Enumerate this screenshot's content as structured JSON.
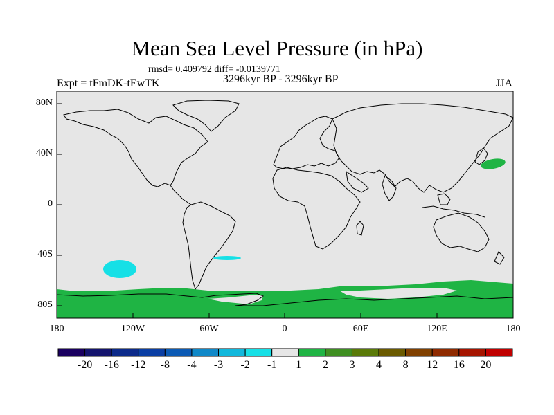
{
  "title": "Mean Sea Level Pressure (in hPa)",
  "stats": "rmsd= 0.409792  diff= -0.0139771",
  "experiment": "Expt = tFmDK-tEwTK",
  "period": "3296kyr BP - 3296kyr BP",
  "season": "JJA",
  "map": {
    "lat_labels": [
      "80N",
      "40N",
      "0",
      "40S",
      "80S"
    ],
    "lon_labels": [
      "180",
      "120W",
      "60W",
      "0",
      "60E",
      "120E",
      "180"
    ],
    "background_color": "#e6e6e6",
    "anomalies": [
      {
        "name": "antarctic-band",
        "sign": "positive",
        "range": "1 to 2"
      },
      {
        "name": "north-pacific-blob",
        "sign": "positive",
        "range": "1 to 2"
      },
      {
        "name": "south-pacific-blob",
        "sign": "negative",
        "range": "-2 to -1"
      },
      {
        "name": "south-atlantic-blob",
        "sign": "negative",
        "range": "-2 to -1"
      }
    ]
  },
  "colorbar": {
    "labels": [
      "-20",
      "-16",
      "-12",
      "-8",
      "-4",
      "-3",
      "-2",
      "-1",
      "1",
      "2",
      "3",
      "4",
      "8",
      "12",
      "16",
      "20"
    ],
    "colors": [
      "#1a0060",
      "#14146e",
      "#0c2a8a",
      "#0a3ea3",
      "#0b5ab4",
      "#0f88c8",
      "#12b8dc",
      "#16e0e6",
      "#e6e6e6",
      "#1fb444",
      "#3f8f22",
      "#5a7a08",
      "#6a5a00",
      "#804000",
      "#8f2a00",
      "#a51400",
      "#c00000"
    ]
  }
}
